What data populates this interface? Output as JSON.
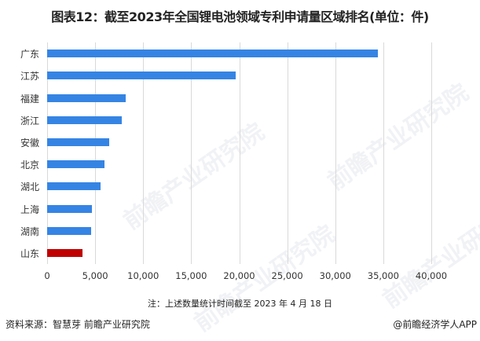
{
  "title": "图表12：截至2023年全国锂电池领域专利申请量区域排名(单位：件)",
  "note": "注：上述数量统计时间截至 2023 年 4 月 18 日",
  "source": "资料来源：智慧芽 前瞻产业研究院",
  "credit": "@前瞻经济学人APP",
  "watermark": "前瞻产业研究院",
  "colors": {
    "bar": "#3584e4",
    "highlight": "#c00000",
    "grid": "#d9d9d9"
  },
  "chart_data": {
    "type": "bar",
    "orientation": "horizontal",
    "title": "图表12：截至2023年全国锂电池领域专利申请量区域排名(单位：件)",
    "xlabel": "",
    "ylabel": "",
    "categories": [
      "广东",
      "江苏",
      "福建",
      "浙江",
      "安徽",
      "北京",
      "湖北",
      "上海",
      "湖南",
      "山东"
    ],
    "values": [
      34400,
      19600,
      8200,
      7800,
      6500,
      6000,
      5600,
      4700,
      4600,
      3700
    ],
    "highlight": "山东",
    "xlim": [
      0,
      40000
    ],
    "xticks": [
      "0",
      "5,000",
      "10,000",
      "15,000",
      "20,000",
      "25,000",
      "30,000",
      "35,000",
      "40,000"
    ],
    "grid": true,
    "legend": null
  }
}
